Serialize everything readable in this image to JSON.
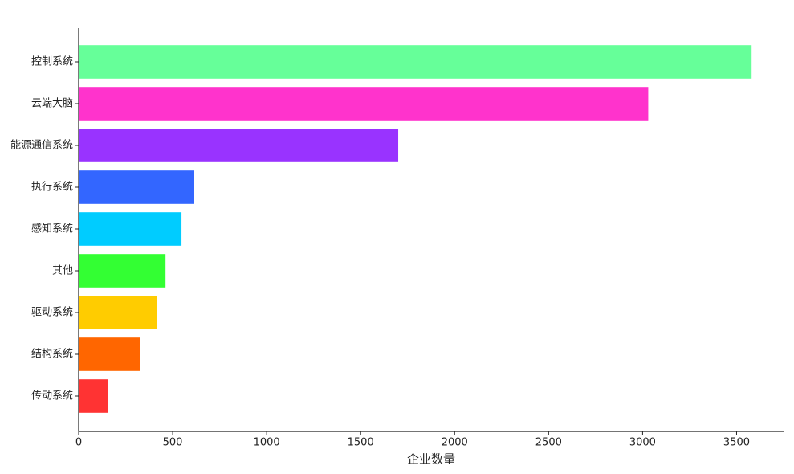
{
  "chart_data": {
    "type": "barh",
    "xlabel": "企业数量",
    "categories": [
      "控制系统",
      "云端大脑",
      "能源通信系统",
      "执行系统",
      "感知系统",
      "其他",
      "驱动系统",
      "结构系统",
      "传动系统"
    ],
    "values": [
      3580,
      3030,
      1700,
      615,
      547,
      462,
      415,
      325,
      158
    ],
    "colors": [
      "#66ff99",
      "#ff33cc",
      "#9933ff",
      "#3366ff",
      "#00ccff",
      "#33ff33",
      "#ffcc00",
      "#ff6600",
      "#ff3333"
    ],
    "xlim": [
      0,
      3750
    ],
    "xticks": [
      0,
      500,
      1000,
      1500,
      2000,
      2500,
      3000,
      3500
    ],
    "grid": false
  }
}
